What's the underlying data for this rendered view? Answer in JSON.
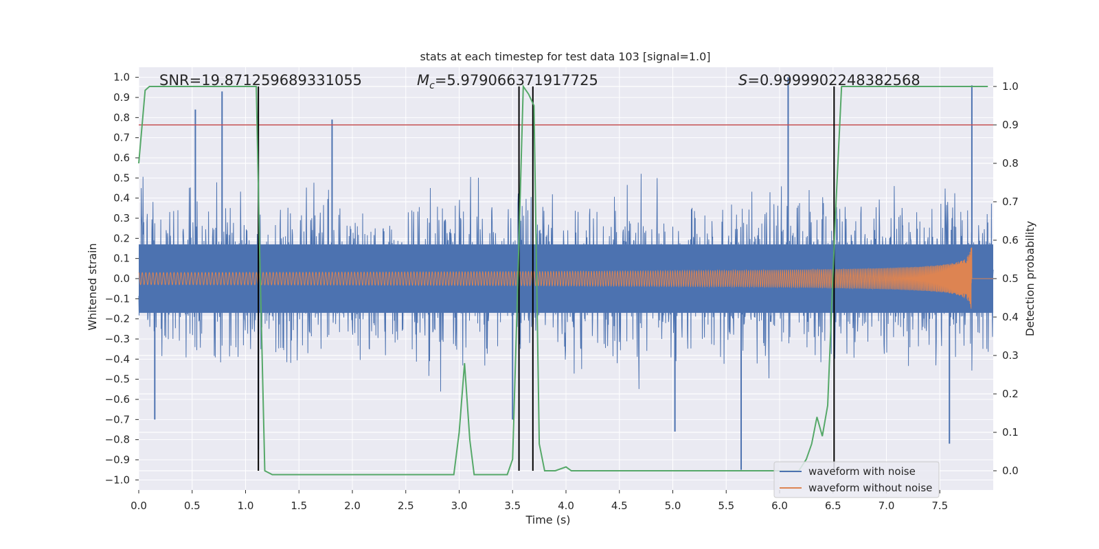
{
  "chart_data": {
    "type": "line",
    "title": "stats at each timestep for test data 103 [signal=1.0]",
    "xlabel": "Time (s)",
    "ylabel_left": "Whitened strain",
    "ylabel_right": "Detection probability",
    "xlim": [
      0.0,
      8.0
    ],
    "ylim_left": [
      -1.05,
      1.05
    ],
    "ylim_right": [
      -0.05,
      1.05
    ],
    "grid": true,
    "x_ticks": [
      "0.0",
      "0.5",
      "1.0",
      "1.5",
      "2.0",
      "2.5",
      "3.0",
      "3.5",
      "4.0",
      "4.5",
      "5.0",
      "5.5",
      "6.0",
      "6.5",
      "7.0",
      "7.5"
    ],
    "y_left_ticks": [
      "1.0",
      "0.9",
      "0.8",
      "0.7",
      "0.6",
      "0.5",
      "0.4",
      "0.3",
      "0.2",
      "0.1",
      "0.0",
      "−0.1",
      "−0.2",
      "−0.3",
      "−0.4",
      "−0.5",
      "−0.6",
      "−0.7",
      "−0.8",
      "−0.9",
      "−1.0"
    ],
    "y_right_ticks": [
      "1.0",
      "0.9",
      "0.8",
      "0.7",
      "0.6",
      "0.5",
      "0.4",
      "0.3",
      "0.2",
      "0.1",
      "0.0"
    ],
    "annotations": {
      "snr": "SNR=19.871259689331055",
      "mc_symbol": "M",
      "mc_sub": "c",
      "mc_value": "=5.979066371917725",
      "s_symbol": "S",
      "s_value": "=0.9999902248382568"
    },
    "threshold_line": {
      "y_right": 0.9,
      "color": "#c44e52"
    },
    "vertical_lines_x": [
      1.12,
      3.56,
      3.69,
      6.51
    ],
    "noise_series": {
      "name": "waveform with noise",
      "color": "#4c72b0",
      "x_range": [
        0.0,
        8.0
      ],
      "approx_amplitude": 0.55,
      "peak_range": [
        -0.95,
        1.0
      ],
      "spikes": [
        {
          "x": 0.53,
          "y": 0.84
        },
        {
          "x": 0.78,
          "y": 0.93
        },
        {
          "x": 1.12,
          "y": -0.85
        },
        {
          "x": 1.81,
          "y": 0.79
        },
        {
          "x": 6.08,
          "y": 1.0
        },
        {
          "x": 5.64,
          "y": -0.95
        },
        {
          "x": 7.8,
          "y": 0.96
        },
        {
          "x": 7.59,
          "y": -0.82
        },
        {
          "x": 3.5,
          "y": -0.7
        },
        {
          "x": 0.15,
          "y": -0.7
        },
        {
          "x": 5.02,
          "y": -0.76
        }
      ]
    },
    "clean_series": {
      "name": "waveform without noise",
      "color": "#dd8452",
      "x_range": [
        0.0,
        7.82
      ],
      "start_amplitude": 0.03,
      "end_amplitude": 0.57,
      "start_frequency_hz": 30,
      "merger_time": 7.8
    },
    "probability_series": {
      "name": "detection probability",
      "color": "#55a868",
      "x": [
        0.0,
        0.06,
        0.1,
        0.15,
        1.1,
        1.13,
        1.18,
        1.25,
        2.95,
        3.0,
        3.05,
        3.1,
        3.14,
        3.45,
        3.5,
        3.55,
        3.6,
        3.65,
        3.7,
        3.75,
        3.8,
        3.9,
        4.0,
        4.05,
        6.18,
        6.25,
        6.3,
        6.35,
        6.4,
        6.45,
        6.52,
        6.58,
        7.95
      ],
      "y": [
        0.8,
        0.99,
        1.0,
        1.0,
        1.0,
        0.6,
        0.0,
        -0.01,
        -0.01,
        0.1,
        0.28,
        0.08,
        -0.01,
        -0.01,
        0.03,
        0.5,
        1.0,
        0.98,
        0.95,
        0.07,
        0.0,
        0.0,
        0.01,
        0.0,
        0.0,
        0.03,
        0.07,
        0.14,
        0.09,
        0.17,
        0.65,
        1.0,
        1.0
      ]
    },
    "legend": {
      "position": "bottom-right",
      "entries": [
        {
          "label": "waveform with noise",
          "color": "#4c72b0"
        },
        {
          "label": "waveform without noise",
          "color": "#dd8452"
        }
      ]
    },
    "colors": {
      "plot_bg": "#eaeaf2",
      "grid": "#ffffff",
      "vline": "#000000"
    }
  }
}
